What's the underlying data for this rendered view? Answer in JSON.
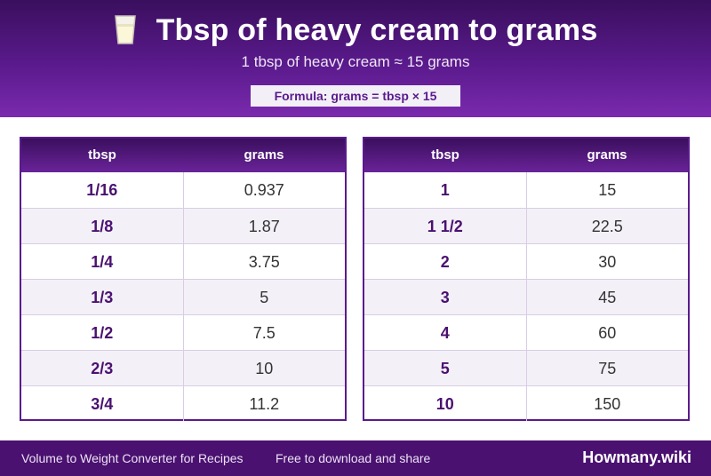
{
  "header": {
    "icon": "glass-of-milk-icon",
    "title": "Tbsp of heavy cream to grams",
    "subtitle": "1 tbsp of heavy cream ≈ 15 grams",
    "formula": "Formula: grams = tbsp × 15"
  },
  "tables": [
    {
      "headers": [
        "tbsp",
        "grams"
      ],
      "rows": [
        [
          "1/16",
          "0.937"
        ],
        [
          "1/8",
          "1.87"
        ],
        [
          "1/4",
          "3.75"
        ],
        [
          "1/3",
          "5"
        ],
        [
          "1/2",
          "7.5"
        ],
        [
          "2/3",
          "10"
        ],
        [
          "3/4",
          "11.2"
        ]
      ]
    },
    {
      "headers": [
        "tbsp",
        "grams"
      ],
      "rows": [
        [
          "1",
          "15"
        ],
        [
          "1 1/2",
          "22.5"
        ],
        [
          "2",
          "30"
        ],
        [
          "3",
          "45"
        ],
        [
          "4",
          "60"
        ],
        [
          "5",
          "75"
        ],
        [
          "10",
          "150"
        ]
      ]
    }
  ],
  "footer": {
    "left_text": "Volume to Weight Converter for Recipes",
    "middle_text": "Free to download and share",
    "brand": "Howmany.wiki"
  },
  "colors": {
    "accent": "#5a1a8c",
    "header_dark": "#3a0f5e",
    "footer": "#4a1170"
  }
}
